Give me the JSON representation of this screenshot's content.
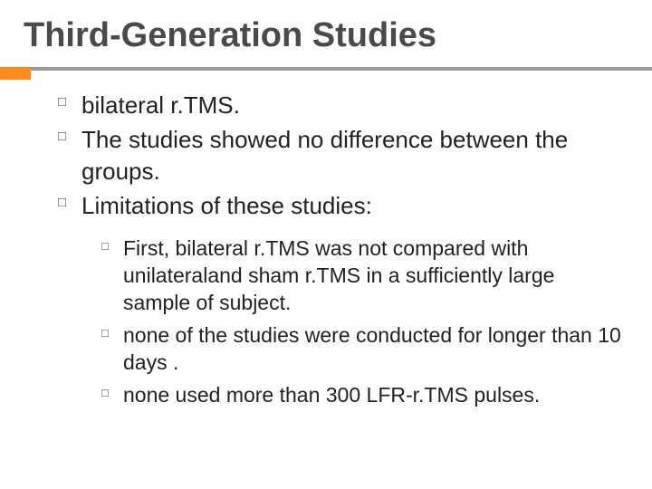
{
  "colors": {
    "accent": "#ff8c1a",
    "line": "#9b9b9b",
    "title": "#4a4a4a",
    "text": "#212121",
    "background": "#ffffff"
  },
  "typography": {
    "title_fontsize": 38,
    "body_fontsize": 26,
    "sub_fontsize": 23,
    "title_weight": "bold",
    "font_family": "Arial"
  },
  "title": "Third-Generation Studies",
  "bullets": [
    {
      "text": "bilateral r.TMS."
    },
    {
      "text": " The studies showed no difference between the groups."
    },
    {
      "text": "Limitations of these studies:"
    }
  ],
  "sub_bullets": [
    {
      "text": "First, bilateral r.TMS was not compared with unilateraland sham r.TMS in a sufficiently large sample of subject."
    },
    {
      "text": "none of the studies were conducted for longer than 10 days ."
    },
    {
      "text": "none used more than 300 LFR-r.TMS pulses."
    }
  ]
}
